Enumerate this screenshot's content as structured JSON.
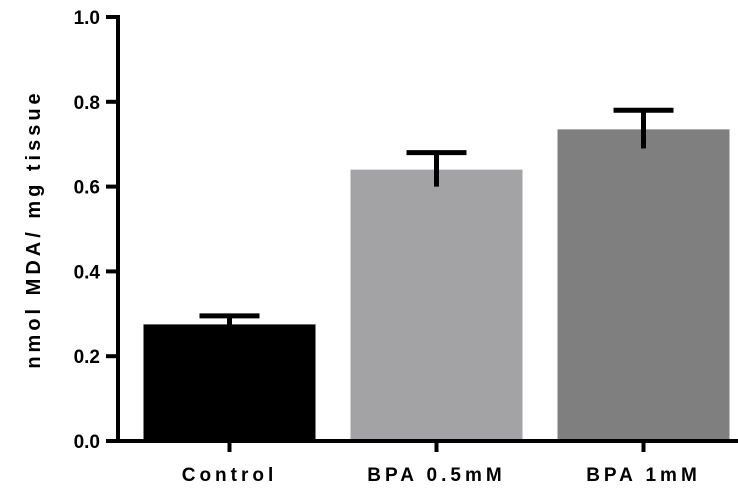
{
  "chart_data": {
    "type": "bar",
    "categories": [
      "Control",
      "BPA 0.5mM",
      "BPA 1mM"
    ],
    "values": [
      0.275,
      0.64,
      0.735
    ],
    "errors": [
      0.02,
      0.04,
      0.045
    ],
    "bar_colors": [
      "#000000",
      "#a3a3a6",
      "#7f7f7f"
    ],
    "ylabel": "nmol MDA/ mg tissue",
    "xlabel": "",
    "ylim": [
      0.0,
      1.0
    ],
    "yticks": [
      0.0,
      0.2,
      0.4,
      0.6,
      0.8,
      1.0
    ],
    "ytick_labels": [
      "0.0",
      "0.2",
      "0.4",
      "0.6",
      "0.8",
      "1.0"
    ],
    "grid": false,
    "legend": "none"
  }
}
